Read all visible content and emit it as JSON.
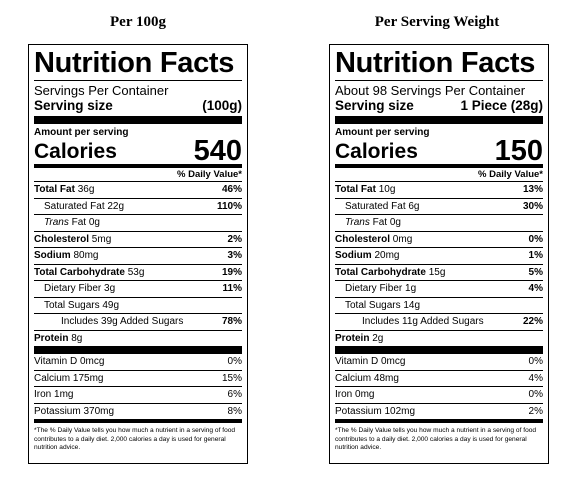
{
  "panels": [
    {
      "heading": "Per 100g",
      "title": "Nutrition Facts",
      "servings": "Servings Per Container",
      "serving_size_label": "Serving size",
      "serving_size_value": "(100g)",
      "amount_label": "Amount per serving",
      "calories_label": "Calories",
      "calories_value": "540",
      "dv_header": "% Daily Value*",
      "total_fat": "36g",
      "total_fat_dv": "46%",
      "sat_fat": "22g",
      "sat_fat_dv": "110%",
      "trans_fat": "0g",
      "cholesterol": "5mg",
      "cholesterol_dv": "2%",
      "sodium": "80mg",
      "sodium_dv": "3%",
      "carb": "53g",
      "carb_dv": "19%",
      "fiber": "3g",
      "fiber_dv": "11%",
      "sugars": "49g",
      "added_sugars": "39g",
      "added_sugars_dv": "78%",
      "protein": "8g",
      "vitd": "0mcg",
      "vitd_dv": "0%",
      "calcium": "175mg",
      "calcium_dv": "15%",
      "iron": "1mg",
      "iron_dv": "6%",
      "potassium": "370mg",
      "potassium_dv": "8%"
    },
    {
      "heading": "Per Serving Weight",
      "title": "Nutrition Facts",
      "servings": "About 98 Servings Per Container",
      "serving_size_label": "Serving size",
      "serving_size_value": "1 Piece (28g)",
      "amount_label": "Amount per serving",
      "calories_label": "Calories",
      "calories_value": "150",
      "dv_header": "% Daily Value*",
      "total_fat": "10g",
      "total_fat_dv": "13%",
      "sat_fat": "6g",
      "sat_fat_dv": "30%",
      "trans_fat": "0g",
      "cholesterol": "0mg",
      "cholesterol_dv": "0%",
      "sodium": "20mg",
      "sodium_dv": "1%",
      "carb": "15g",
      "carb_dv": "5%",
      "fiber": "1g",
      "fiber_dv": "4%",
      "sugars": "14g",
      "added_sugars": "11g",
      "added_sugars_dv": "22%",
      "protein": "2g",
      "vitd": "0mcg",
      "vitd_dv": "0%",
      "calcium": "48mg",
      "calcium_dv": "4%",
      "iron": "0mg",
      "iron_dv": "0%",
      "potassium": "102mg",
      "potassium_dv": "2%"
    }
  ],
  "labels": {
    "total_fat": "Total Fat",
    "sat_fat": "Saturated Fat",
    "trans_prefix": "Trans",
    "trans_suffix": "Fat",
    "cholesterol": "Cholesterol",
    "sodium": "Sodium",
    "carb": "Total Carbohydrate",
    "fiber": "Dietary Fiber",
    "sugars": "Total Sugars",
    "added_prefix": "Includes",
    "added_suffix": "Added Sugars",
    "protein": "Protein",
    "vitd": "Vitamin D",
    "calcium": "Calcium",
    "iron": "Iron",
    "potassium": "Potassium"
  },
  "footnote": "*The % Daily Value tells you how much a nutrient in a serving of food contributes to a daily diet. 2,000 calories a day is used for general nutrition advice."
}
